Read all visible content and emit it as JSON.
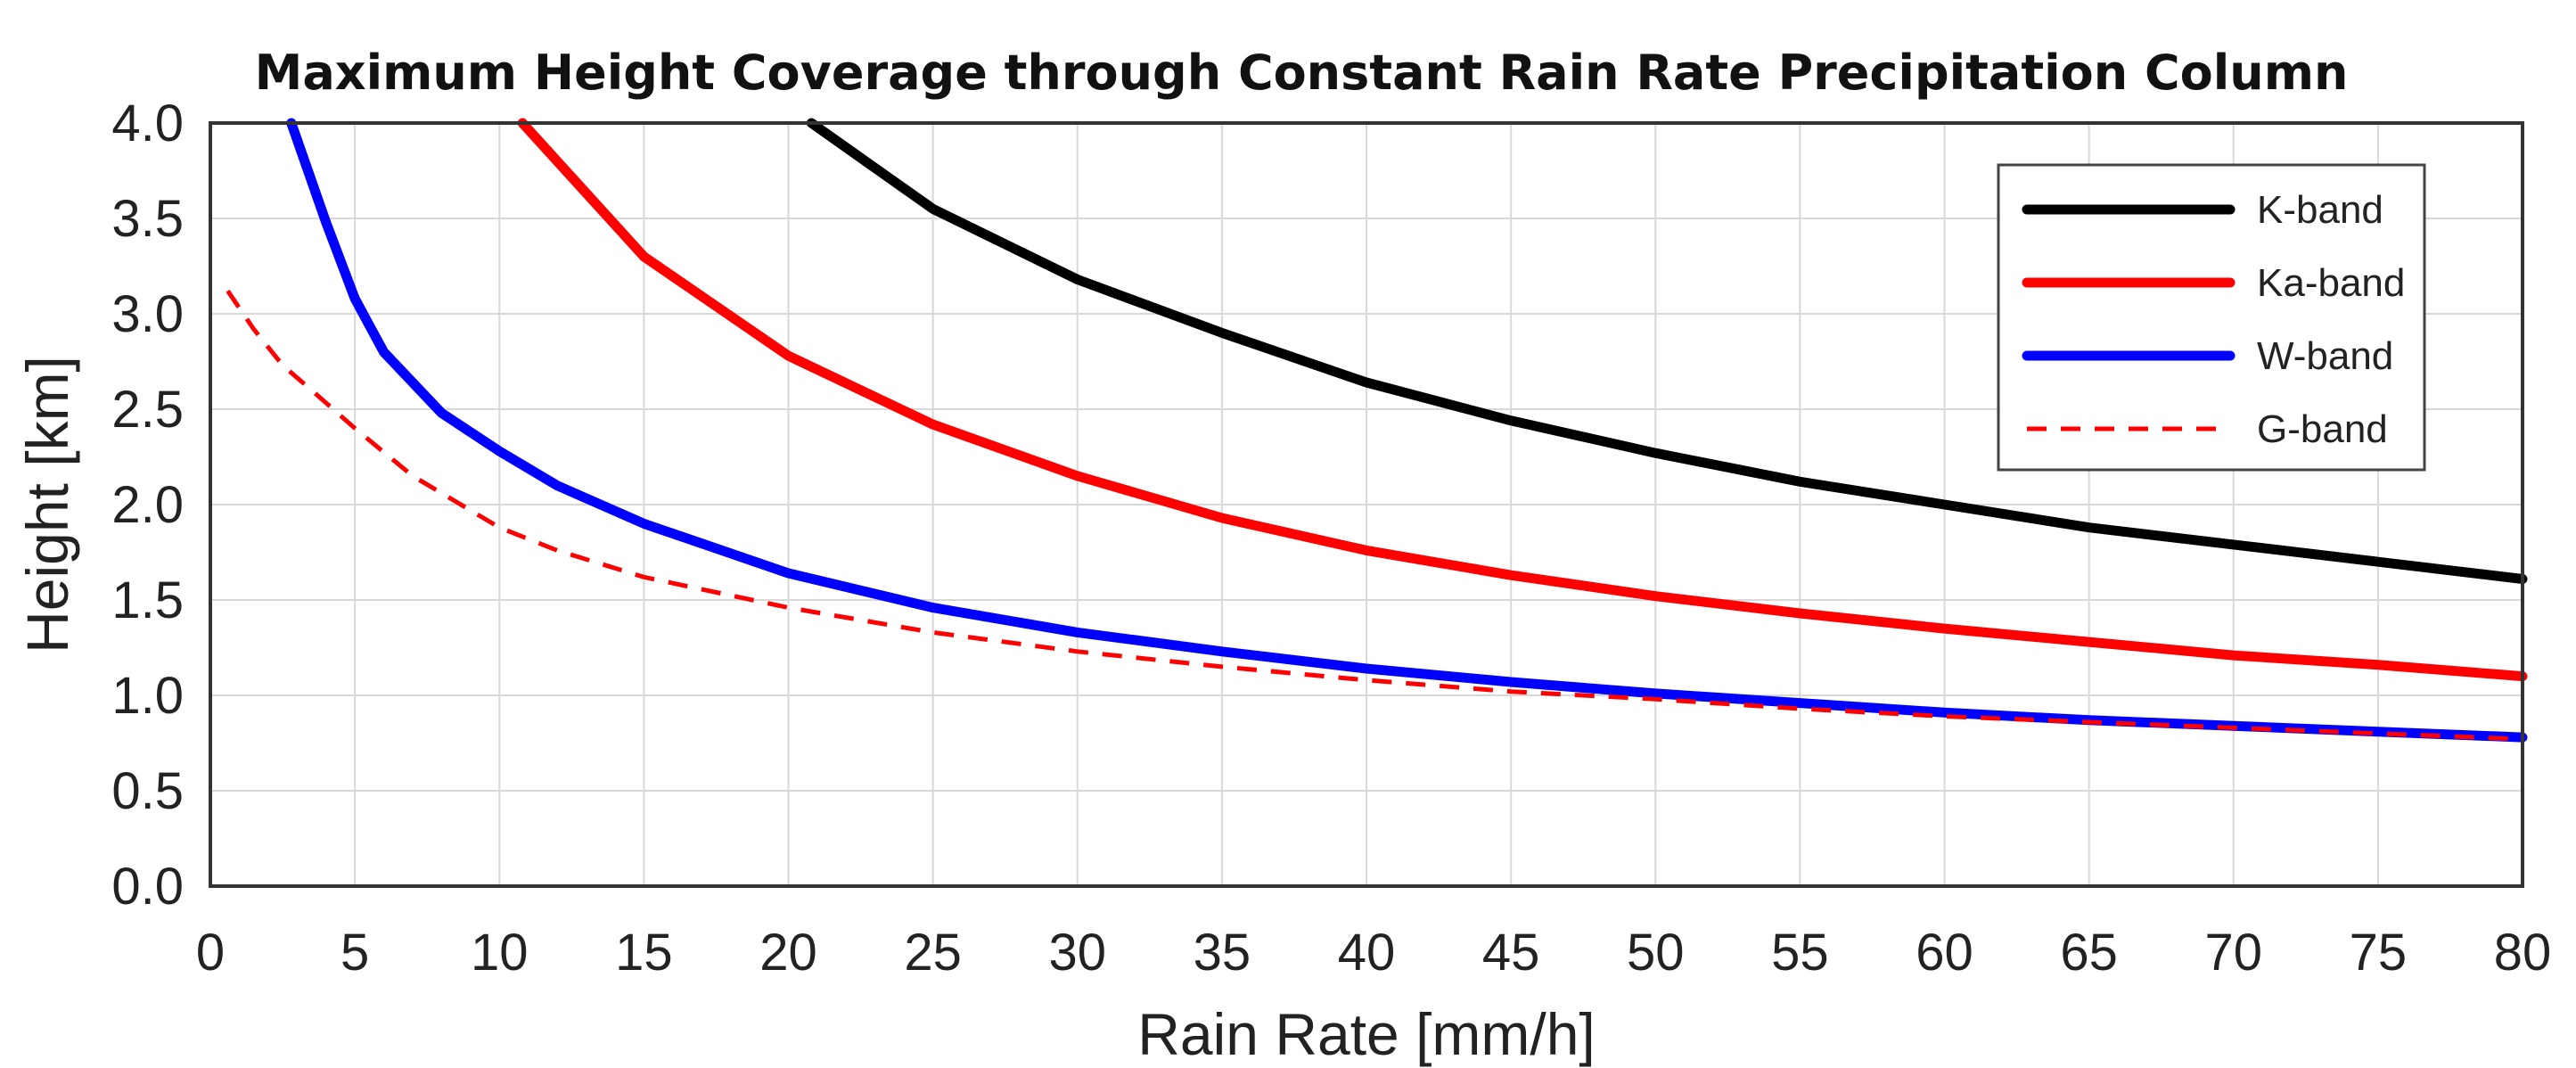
{
  "chart_data": {
    "type": "line",
    "title": "Maximum Height Coverage through Constant Rain Rate Precipitation Column",
    "xlabel": "Rain Rate [mm/h]",
    "ylabel": "Height [km]",
    "xlim": [
      0,
      80
    ],
    "ylim": [
      0,
      4
    ],
    "xticks": [
      0,
      5,
      10,
      15,
      20,
      25,
      30,
      35,
      40,
      45,
      50,
      55,
      60,
      65,
      70,
      75,
      80
    ],
    "yticks": [
      0.0,
      0.5,
      1.0,
      1.5,
      2.0,
      2.5,
      3.0,
      3.5,
      4.0
    ],
    "xtick_labels": [
      "0",
      "5",
      "10",
      "15",
      "20",
      "25",
      "30",
      "35",
      "40",
      "45",
      "50",
      "55",
      "60",
      "65",
      "70",
      "75",
      "80"
    ],
    "ytick_labels": [
      "0.0",
      "0.5",
      "1.0",
      "1.5",
      "2.0",
      "2.5",
      "3.0",
      "3.5",
      "4.0"
    ],
    "grid": true,
    "legend_position": "top-right",
    "series": [
      {
        "name": "K-band",
        "color": "#000000",
        "style": "solid",
        "x": [
          20.8,
          25,
          30,
          35,
          40,
          45,
          50,
          55,
          60,
          65,
          70,
          75,
          80
        ],
        "y": [
          4.0,
          3.55,
          3.18,
          2.9,
          2.64,
          2.44,
          2.27,
          2.12,
          2.0,
          1.88,
          1.79,
          1.7,
          1.61
        ]
      },
      {
        "name": "Ka-band",
        "color": "#ff0000",
        "style": "solid",
        "x": [
          10.8,
          15,
          20,
          25,
          30,
          35,
          40,
          45,
          50,
          55,
          60,
          65,
          70,
          75,
          80
        ],
        "y": [
          4.0,
          3.3,
          2.78,
          2.42,
          2.15,
          1.93,
          1.76,
          1.63,
          1.52,
          1.43,
          1.35,
          1.28,
          1.21,
          1.16,
          1.1
        ]
      },
      {
        "name": "W-band",
        "color": "#0000ff",
        "style": "solid",
        "x": [
          2.8,
          4,
          5,
          6,
          8,
          10,
          12,
          15,
          20,
          25,
          30,
          35,
          40,
          45,
          50,
          55,
          60,
          65,
          70,
          75,
          80
        ],
        "y": [
          4.0,
          3.48,
          3.08,
          2.8,
          2.48,
          2.28,
          2.1,
          1.9,
          1.64,
          1.46,
          1.33,
          1.23,
          1.14,
          1.07,
          1.01,
          0.96,
          0.91,
          0.87,
          0.84,
          0.81,
          0.78
        ]
      },
      {
        "name": "G-band",
        "color": "#ff0000",
        "style": "dashed",
        "x": [
          0.6,
          1.5,
          2.5,
          3.5,
          5,
          7,
          10,
          12,
          15,
          20,
          25,
          30,
          35,
          40,
          45,
          50,
          55,
          60,
          65,
          70,
          75,
          80
        ],
        "y": [
          3.12,
          2.92,
          2.73,
          2.6,
          2.4,
          2.15,
          1.88,
          1.76,
          1.62,
          1.46,
          1.33,
          1.23,
          1.15,
          1.08,
          1.02,
          0.98,
          0.93,
          0.89,
          0.86,
          0.83,
          0.8,
          0.77
        ]
      }
    ]
  }
}
